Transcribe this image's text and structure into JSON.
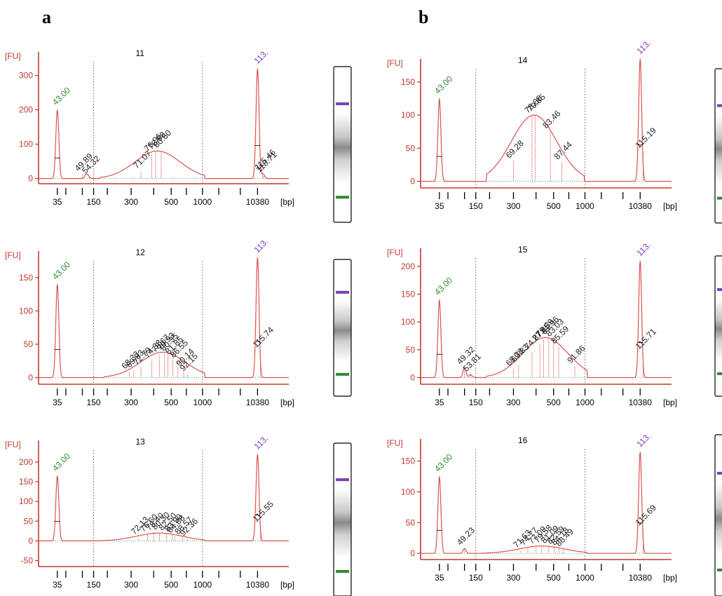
{
  "panel_labels": [
    "a",
    "b"
  ],
  "chart_data": [
    {
      "type": "line",
      "title": "11",
      "ylabel": "[FU]",
      "xlabel": "[bp]",
      "x_ticks": [
        "35",
        "150",
        "300",
        "500",
        "1000",
        "10380"
      ],
      "y_ticks": [
        0,
        100,
        200,
        300
      ],
      "ylim": [
        -15,
        340
      ],
      "marker_peaks": [
        {
          "label": "43.00",
          "x": 35,
          "y": 200,
          "color": "#2e8b2e"
        },
        {
          "label": "113.",
          "x": 10380,
          "y": 320,
          "color": "#7a3fb5"
        }
      ],
      "smear": {
        "center": 420,
        "height": 80,
        "from": 200,
        "to": 1000
      },
      "small_peaks": [
        {
          "x": 115,
          "y": 12
        },
        {
          "x": 125,
          "y": 5
        },
        {
          "x": 10800,
          "y": 14
        }
      ],
      "peak_labels": [
        {
          "label": "49.89",
          "x": 100,
          "y": 12
        },
        {
          "label": "54.32",
          "x": 130,
          "y": 5
        },
        {
          "label": "71.07",
          "x": 340,
          "y": 20
        },
        {
          "label": "76.96",
          "x": 390,
          "y": 70
        },
        {
          "label": "78.88",
          "x": 410,
          "y": 75
        },
        {
          "label": "80.60",
          "x": 440,
          "y": 80
        },
        {
          "label": "115.46",
          "x": 10750,
          "y": 15
        },
        {
          "label": "118.71",
          "x": 10850,
          "y": 8
        }
      ],
      "gel": {
        "upper": "#7a3fb5",
        "lower": "#2e8b2e",
        "smear": true
      }
    },
    {
      "type": "line",
      "title": "12",
      "ylabel": "[FU]",
      "xlabel": "[bp]",
      "x_ticks": [
        "35",
        "150",
        "300",
        "500",
        "1000",
        "10380"
      ],
      "y_ticks": [
        0,
        50,
        100,
        150
      ],
      "ylim": [
        -10,
        175
      ],
      "marker_peaks": [
        {
          "label": "43.00",
          "x": 35,
          "y": 140,
          "color": "#2e8b2e"
        },
        {
          "label": "113.",
          "x": 10380,
          "y": 180,
          "color": "#7a3fb5"
        }
      ],
      "smear": {
        "center": 450,
        "height": 38,
        "from": 220,
        "to": 1000
      },
      "small_peaks": [],
      "peak_labels": [
        {
          "label": "68.33",
          "x": 290,
          "y": 8
        },
        {
          "label": "69.83",
          "x": 310,
          "y": 10
        },
        {
          "label": "72.79",
          "x": 340,
          "y": 14
        },
        {
          "label": "74.38",
          "x": 390,
          "y": 25
        },
        {
          "label": "78.67",
          "x": 430,
          "y": 33
        },
        {
          "label": "79.93",
          "x": 460,
          "y": 36
        },
        {
          "label": "80.35",
          "x": 480,
          "y": 35
        },
        {
          "label": "81.85",
          "x": 520,
          "y": 30
        },
        {
          "label": "86.55",
          "x": 580,
          "y": 25
        },
        {
          "label": "90.14",
          "x": 660,
          "y": 12
        },
        {
          "label": "92.15",
          "x": 720,
          "y": 5
        },
        {
          "label": "115.74",
          "x": 10600,
          "y": 40
        }
      ],
      "gel": {
        "upper": "#7a3fb5",
        "lower": "#2e8b2e",
        "smear": true
      }
    },
    {
      "type": "line",
      "title": "13",
      "ylabel": "[FU]",
      "xlabel": "[bp]",
      "x_ticks": [
        "35",
        "150",
        "300",
        "500",
        "1000",
        "10380"
      ],
      "y_ticks": [
        -50,
        0,
        50,
        100,
        150,
        200
      ],
      "ylim": [
        -65,
        230
      ],
      "marker_peaks": [
        {
          "label": "43.00",
          "x": 35,
          "y": 165,
          "color": "#2e8b2e"
        },
        {
          "label": "113.",
          "x": 10380,
          "y": 220,
          "color": "#7a3fb5"
        }
      ],
      "smear": {
        "center": 430,
        "height": 20,
        "from": 200,
        "to": 1000
      },
      "small_peaks": [],
      "peak_labels": [
        {
          "label": "72.13",
          "x": 330,
          "y": 8
        },
        {
          "label": "76.60",
          "x": 370,
          "y": 15
        },
        {
          "label": "78.40",
          "x": 400,
          "y": 18
        },
        {
          "label": "80.30",
          "x": 430,
          "y": 20
        },
        {
          "label": "82.50",
          "x": 470,
          "y": 18
        },
        {
          "label": "83.90",
          "x": 510,
          "y": 15
        },
        {
          "label": "84.88",
          "x": 540,
          "y": 12
        },
        {
          "label": "88.57",
          "x": 640,
          "y": 8
        },
        {
          "label": "92.36",
          "x": 720,
          "y": 4
        },
        {
          "label": "115.55",
          "x": 10600,
          "y": 40
        }
      ],
      "gel": {
        "upper": "#7a3fb5",
        "lower": "#2e8b2e",
        "smear": true
      }
    },
    {
      "type": "line",
      "title": "14",
      "ylabel": "[FU]",
      "xlabel": "[bp]",
      "x_ticks": [
        "35",
        "150",
        "300",
        "500",
        "1000",
        "10380"
      ],
      "y_ticks": [
        0,
        50,
        100,
        150
      ],
      "ylim": [
        -10,
        170
      ],
      "marker_peaks": [
        {
          "label": "43.00",
          "x": 35,
          "y": 125,
          "color": "#2e8b2e"
        },
        {
          "label": "113.",
          "x": 10380,
          "y": 185,
          "color": "#7a3fb5"
        }
      ],
      "smear": {
        "center": 390,
        "height": 100,
        "from": 220,
        "to": 900
      },
      "small_peaks": [],
      "peak_labels": [
        {
          "label": "69.28",
          "x": 300,
          "y": 30
        },
        {
          "label": "78.66",
          "x": 380,
          "y": 98
        },
        {
          "label": "79.85",
          "x": 395,
          "y": 100
        },
        {
          "label": "83.46",
          "x": 480,
          "y": 75
        },
        {
          "label": "87.44",
          "x": 600,
          "y": 28
        },
        {
          "label": "115.19",
          "x": 10600,
          "y": 45
        }
      ],
      "gel": {
        "upper": "#7a3fb5",
        "lower": "#2e8b2e",
        "smear": true
      }
    },
    {
      "type": "line",
      "title": "15",
      "ylabel": "[FU]",
      "xlabel": "[bp]",
      "x_ticks": [
        "35",
        "150",
        "300",
        "500",
        "1000",
        "10380"
      ],
      "y_ticks": [
        0,
        50,
        100,
        150,
        200
      ],
      "ylim": [
        -12,
        215
      ],
      "marker_peaks": [
        {
          "label": "43.00",
          "x": 35,
          "y": 140,
          "color": "#2e8b2e"
        },
        {
          "label": "113.",
          "x": 10380,
          "y": 210,
          "color": "#7a3fb5"
        }
      ],
      "smear": {
        "center": 450,
        "height": 72,
        "from": 220,
        "to": 1000
      },
      "small_peaks": [
        {
          "x": 100,
          "y": 18
        },
        {
          "x": 125,
          "y": 5
        }
      ],
      "peak_labels": [
        {
          "label": "49.32",
          "x": 100,
          "y": 18
        },
        {
          "label": "53.81",
          "x": 125,
          "y": 5
        },
        {
          "label": "68.38",
          "x": 300,
          "y": 15
        },
        {
          "label": "69.83",
          "x": 320,
          "y": 22
        },
        {
          "label": "74.87",
          "x": 380,
          "y": 45
        },
        {
          "label": "77.85",
          "x": 420,
          "y": 60
        },
        {
          "label": "79.39",
          "x": 440,
          "y": 68
        },
        {
          "label": "81.96",
          "x": 470,
          "y": 72
        },
        {
          "label": "83.03",
          "x": 500,
          "y": 68
        },
        {
          "label": "85.59",
          "x": 560,
          "y": 55
        },
        {
          "label": "91.86",
          "x": 800,
          "y": 20
        },
        {
          "label": "115.71",
          "x": 10600,
          "y": 45
        }
      ],
      "gel": {
        "upper": "#7a3fb5",
        "lower": "#2e8b2e",
        "smear": true
      }
    },
    {
      "type": "line",
      "title": "16",
      "ylabel": "[FU]",
      "xlabel": "[bp]",
      "x_ticks": [
        "35",
        "150",
        "300",
        "500",
        "1000",
        "10380"
      ],
      "y_ticks": [
        0,
        50,
        100,
        150
      ],
      "ylim": [
        -10,
        170
      ],
      "marker_peaks": [
        {
          "label": "43.00",
          "x": 35,
          "y": 125,
          "color": "#2e8b2e"
        },
        {
          "label": "113.",
          "x": 10380,
          "y": 165,
          "color": "#7a3fb5"
        }
      ],
      "smear": {
        "center": 430,
        "height": 12,
        "from": 200,
        "to": 1000
      },
      "small_peaks": [
        {
          "x": 100,
          "y": 8
        }
      ],
      "peak_labels": [
        {
          "label": "49.23",
          "x": 100,
          "y": 8
        },
        {
          "label": "71.63",
          "x": 330,
          "y": 4
        },
        {
          "label": "74.77",
          "x": 360,
          "y": 8
        },
        {
          "label": "77.09",
          "x": 400,
          "y": 10
        },
        {
          "label": "79.58",
          "x": 430,
          "y": 12
        },
        {
          "label": "81.09",
          "x": 470,
          "y": 11
        },
        {
          "label": "82.59",
          "x": 510,
          "y": 10
        },
        {
          "label": "84.18",
          "x": 560,
          "y": 8
        },
        {
          "label": "86.49",
          "x": 620,
          "y": 6
        },
        {
          "label": "115.69",
          "x": 10600,
          "y": 40
        }
      ],
      "gel": {
        "upper": "#7a3fb5",
        "lower": "#2e8b2e",
        "smear": true
      }
    }
  ]
}
